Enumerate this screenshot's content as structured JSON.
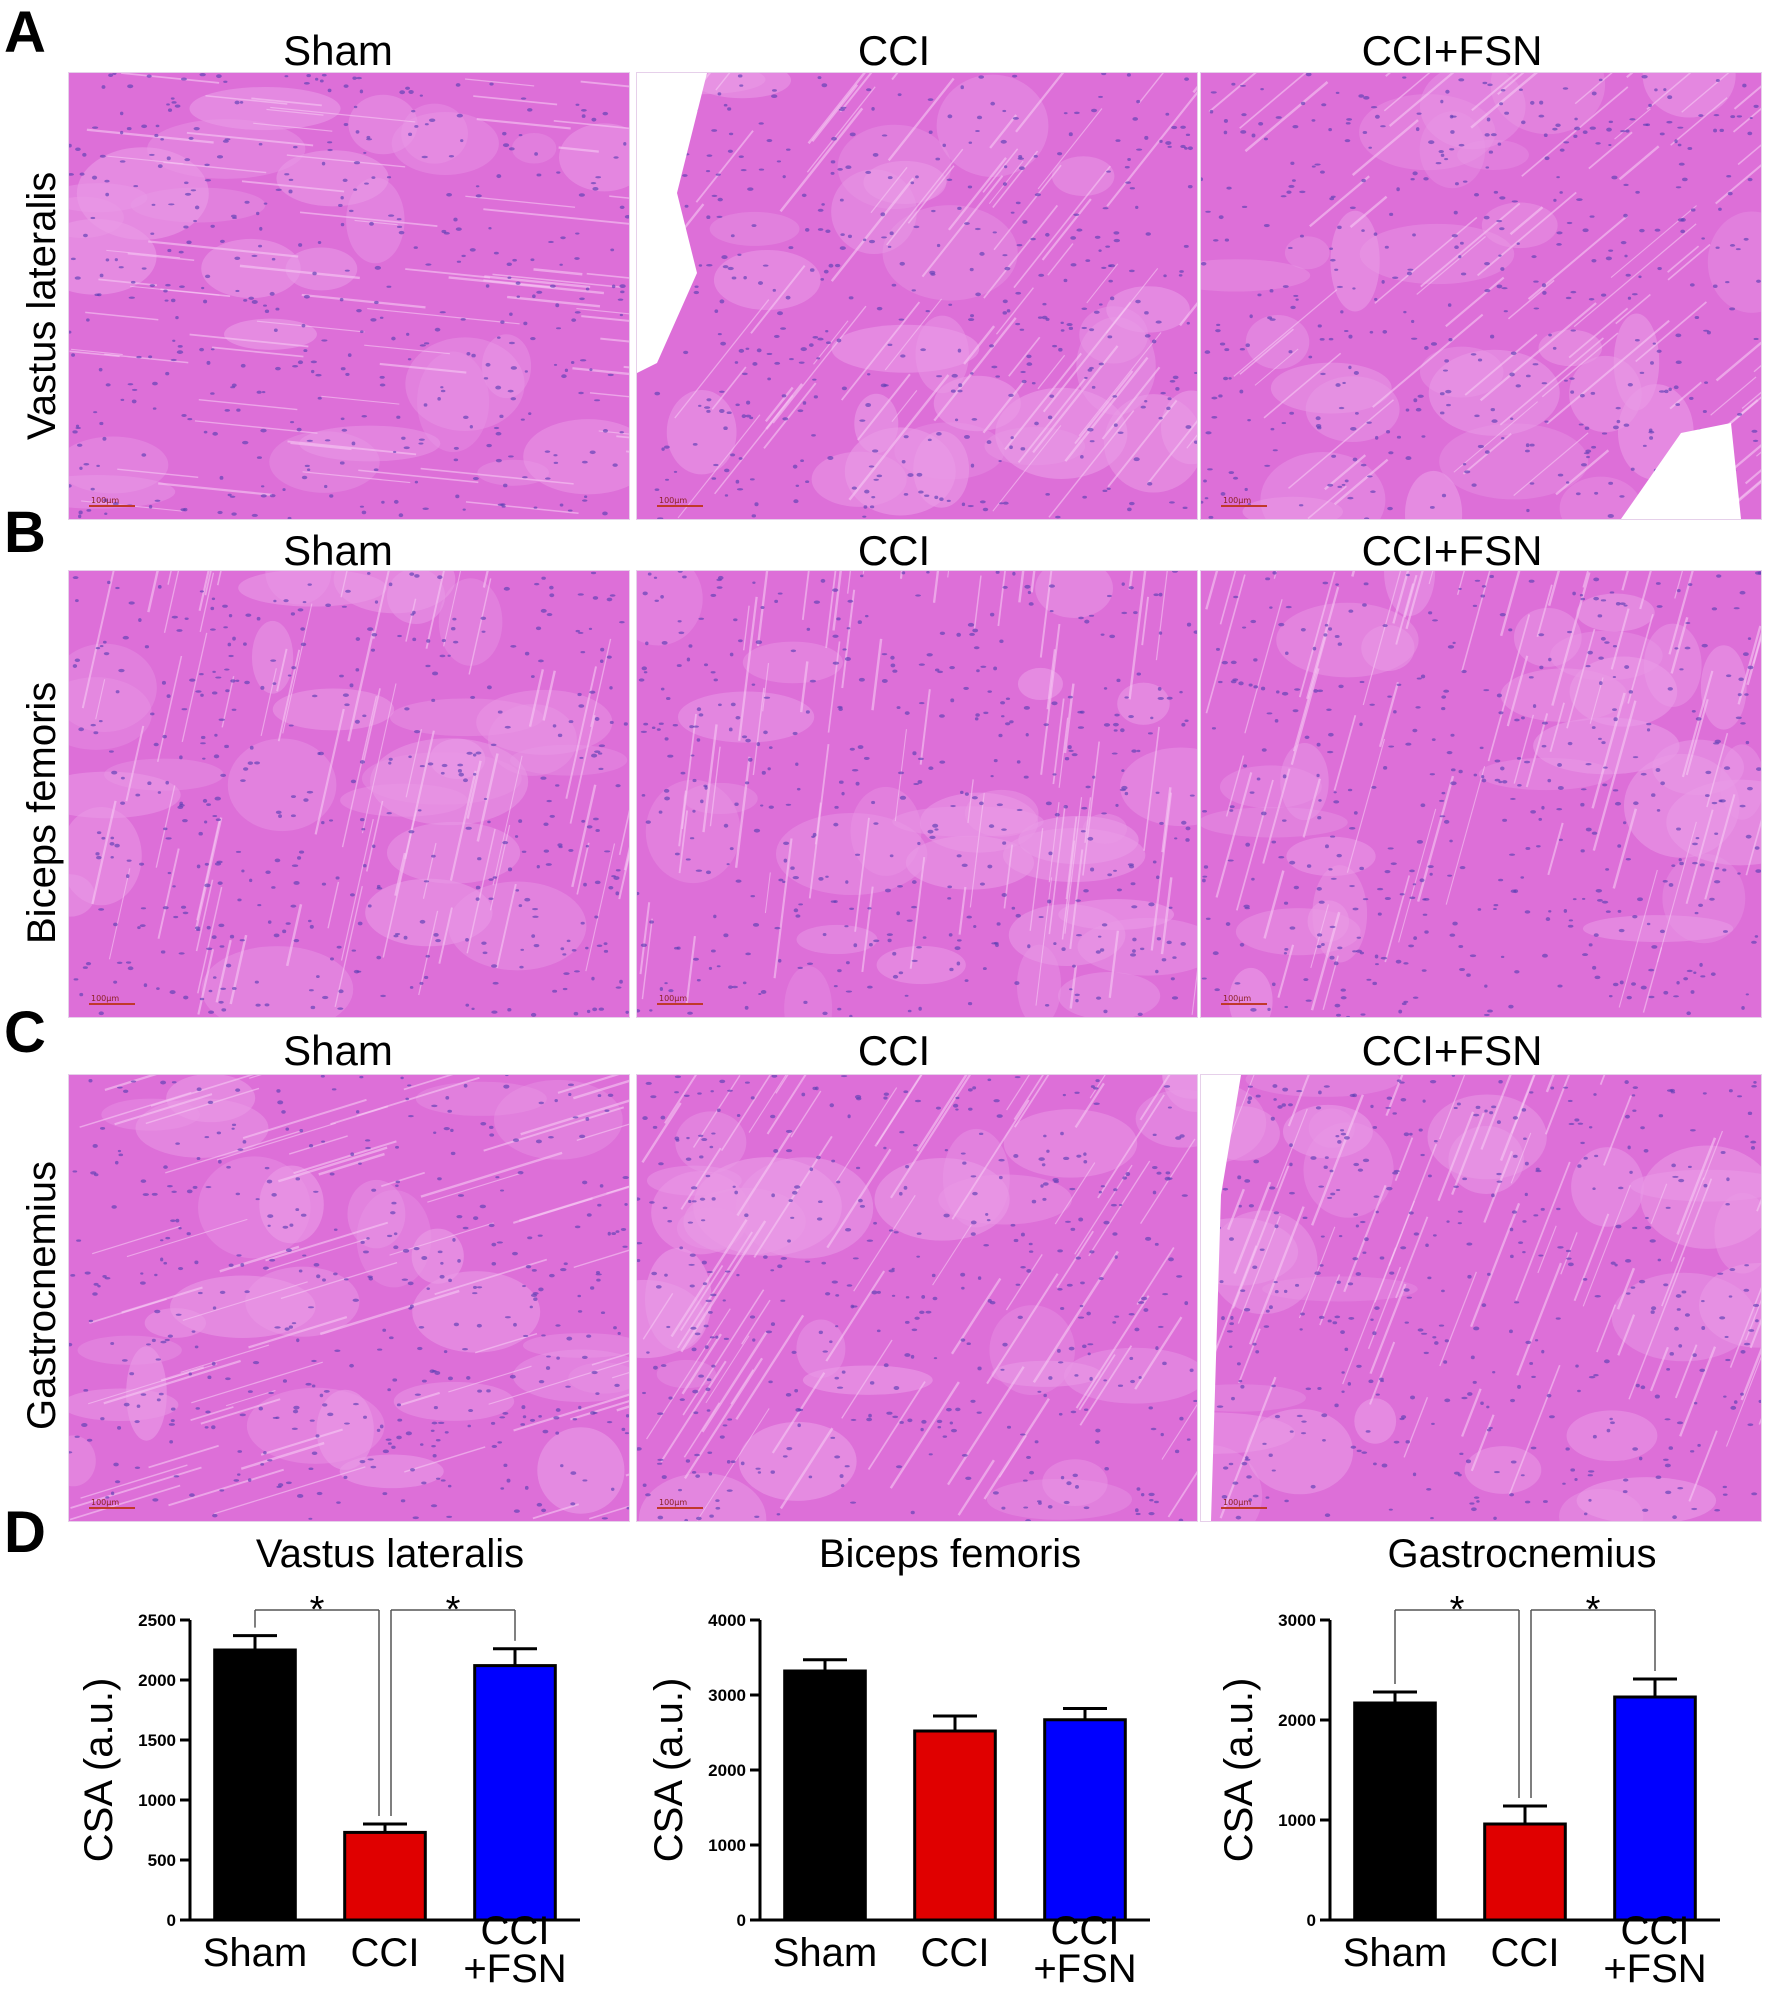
{
  "panels": {
    "A": {
      "letter": "A",
      "row_label": "Vastus lateralis"
    },
    "B": {
      "letter": "B",
      "row_label": "Biceps femoris"
    },
    "C": {
      "letter": "C",
      "row_label": "Gastrocnemius"
    },
    "D": {
      "letter": "D"
    }
  },
  "columns": [
    "Sham",
    "CCI",
    "CCI+FSN"
  ],
  "scale_bar_label": "100μm",
  "colors": {
    "tissue": "#dd6fd8",
    "tissue_light": "#e99ae6",
    "nuclei": "#5a3fb4",
    "sham": "#000000",
    "cci": "#e00000",
    "cci_fsn": "#0000ff"
  },
  "chart_data": [
    {
      "type": "bar",
      "title": "Vastus lateralis",
      "ylabel": "CSA (a.u.)",
      "categories": [
        "Sham",
        "CCI",
        "CCI +FSN"
      ],
      "category_lines": [
        [
          "Sham"
        ],
        [
          "CCI"
        ],
        [
          "CCI",
          "+FSN"
        ]
      ],
      "values": [
        2250,
        730,
        2120
      ],
      "errors": [
        120,
        70,
        140
      ],
      "ylim": [
        0,
        2500
      ],
      "yticks": [
        0,
        500,
        1000,
        1500,
        2000,
        2500
      ],
      "significance": [
        {
          "from": 0,
          "to": 1,
          "label": "*"
        },
        {
          "from": 1,
          "to": 2,
          "label": "*"
        }
      ]
    },
    {
      "type": "bar",
      "title": "Biceps femoris",
      "ylabel": "CSA (a.u.)",
      "categories": [
        "Sham",
        "CCI",
        "CCI +FSN"
      ],
      "category_lines": [
        [
          "Sham"
        ],
        [
          "CCI"
        ],
        [
          "CCI",
          "+FSN"
        ]
      ],
      "values": [
        3320,
        2520,
        2670
      ],
      "errors": [
        150,
        200,
        150
      ],
      "ylim": [
        0,
        4000
      ],
      "yticks": [
        0,
        1000,
        2000,
        3000,
        4000
      ],
      "significance": []
    },
    {
      "type": "bar",
      "title": "Gastrocnemius",
      "ylabel": "CSA (a.u.)",
      "categories": [
        "Sham",
        "CCI",
        "CCI +FSN"
      ],
      "category_lines": [
        [
          "Sham"
        ],
        [
          "CCI"
        ],
        [
          "CCI",
          "+FSN"
        ]
      ],
      "values": [
        2170,
        960,
        2230
      ],
      "errors": [
        110,
        180,
        180
      ],
      "ylim": [
        0,
        3000
      ],
      "yticks": [
        0,
        1000,
        2000,
        3000
      ],
      "significance": [
        {
          "from": 0,
          "to": 1,
          "label": "*"
        },
        {
          "from": 1,
          "to": 2,
          "label": "*"
        }
      ]
    }
  ]
}
